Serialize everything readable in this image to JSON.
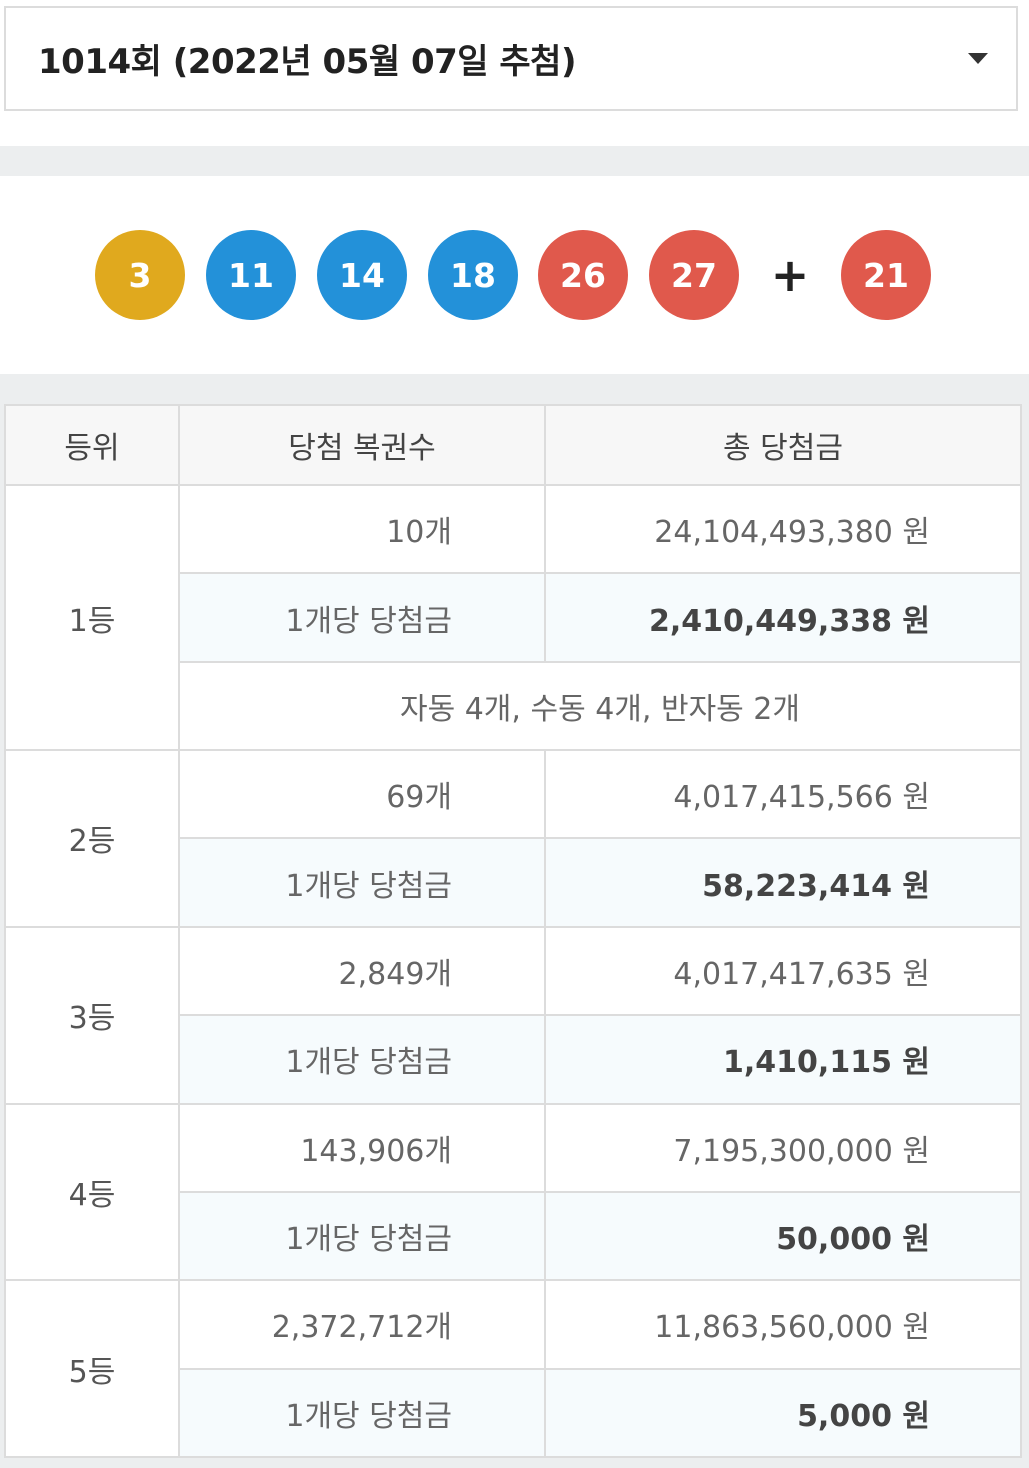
{
  "draw_select": {
    "label": "1014회 (2022년 05월 07일 추첨)"
  },
  "balls": [
    "3",
    "11",
    "14",
    "18",
    "26",
    "27"
  ],
  "bonus": {
    "symbol": "+",
    "number": "21"
  },
  "colors": {
    "yellow": "#e0a91e",
    "blue": "#2391d9",
    "red": "#e0594c"
  },
  "table": {
    "headers": [
      "등위",
      "당첨 복권수",
      "총 당첨금"
    ],
    "per_ticket_label": "1개당 당첨금",
    "rows": [
      {
        "rank": "1등",
        "count": "10개",
        "total": "24,104,493,380 원",
        "per_ticket": "2,410,449,338 원",
        "note": "자동 4개, 수동 4개, 반자동 2개"
      },
      {
        "rank": "2등",
        "count": "69개",
        "total": "4,017,415,566 원",
        "per_ticket": "58,223,414 원"
      },
      {
        "rank": "3등",
        "count": "2,849개",
        "total": "4,017,417,635 원",
        "per_ticket": "1,410,115 원"
      },
      {
        "rank": "4등",
        "count": "143,906개",
        "total": "7,195,300,000 원",
        "per_ticket": "50,000 원"
      },
      {
        "rank": "5등",
        "count": "2,372,712개",
        "total": "11,863,560,000 원",
        "per_ticket": "5,000 원"
      }
    ]
  }
}
